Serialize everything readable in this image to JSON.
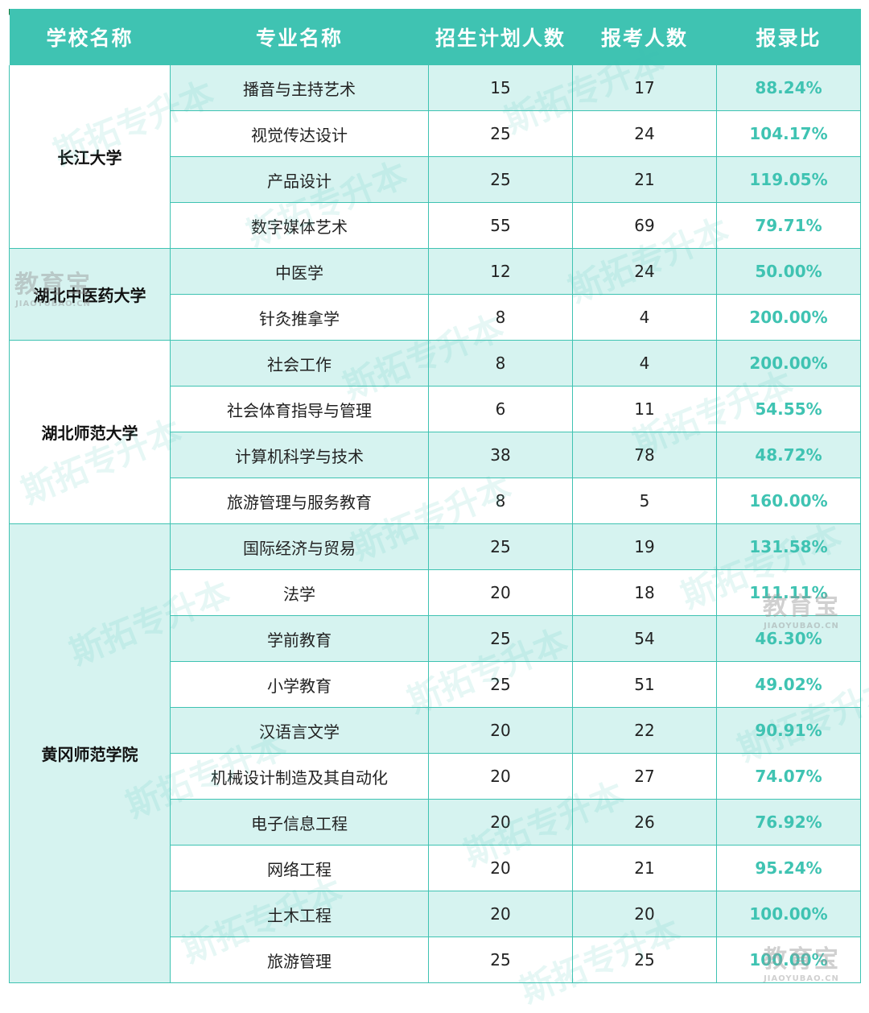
{
  "headers": [
    "学校名称",
    "专业名称",
    "招生计划人数",
    "报考人数",
    "报录比"
  ],
  "schools": [
    {
      "name": "长江大学",
      "rows": [
        {
          "major": "播音与主持艺术",
          "plan": "15",
          "applicants": "17",
          "ratio": "88.24%"
        },
        {
          "major": "视觉传达设计",
          "plan": "25",
          "applicants": "24",
          "ratio": "104.17%"
        },
        {
          "major": "产品设计",
          "plan": "25",
          "applicants": "21",
          "ratio": "119.05%"
        },
        {
          "major": "数字媒体艺术",
          "plan": "55",
          "applicants": "69",
          "ratio": "79.71%"
        }
      ]
    },
    {
      "name": "湖北中医药大学",
      "rows": [
        {
          "major": "中医学",
          "plan": "12",
          "applicants": "24",
          "ratio": "50.00%"
        },
        {
          "major": "针灸推拿学",
          "plan": "8",
          "applicants": "4",
          "ratio": "200.00%"
        }
      ]
    },
    {
      "name": "湖北师范大学",
      "rows": [
        {
          "major": "社会工作",
          "plan": "8",
          "applicants": "4",
          "ratio": "200.00%"
        },
        {
          "major": "社会体育指导与管理",
          "plan": "6",
          "applicants": "11",
          "ratio": "54.55%"
        },
        {
          "major": "计算机科学与技术",
          "plan": "38",
          "applicants": "78",
          "ratio": "48.72%"
        },
        {
          "major": "旅游管理与服务教育",
          "plan": "8",
          "applicants": "5",
          "ratio": "160.00%"
        }
      ]
    },
    {
      "name": "黄冈师范学院",
      "rows": [
        {
          "major": "国际经济与贸易",
          "plan": "25",
          "applicants": "19",
          "ratio": "131.58%"
        },
        {
          "major": "法学",
          "plan": "20",
          "applicants": "18",
          "ratio": "111.11%"
        },
        {
          "major": "学前教育",
          "plan": "25",
          "applicants": "54",
          "ratio": "46.30%"
        },
        {
          "major": "小学教育",
          "plan": "25",
          "applicants": "51",
          "ratio": "49.02%"
        },
        {
          "major": "汉语言文学",
          "plan": "20",
          "applicants": "22",
          "ratio": "90.91%"
        },
        {
          "major": "机械设计制造及其自动化",
          "plan": "20",
          "applicants": "27",
          "ratio": "74.07%"
        },
        {
          "major": "电子信息工程",
          "plan": "20",
          "applicants": "26",
          "ratio": "76.92%"
        },
        {
          "major": "网络工程",
          "plan": "20",
          "applicants": "21",
          "ratio": "95.24%"
        },
        {
          "major": "土木工程",
          "plan": "20",
          "applicants": "20",
          "ratio": "100.00%"
        },
        {
          "major": "旅游管理",
          "plan": "25",
          "applicants": "25",
          "ratio": "100.00%"
        }
      ]
    }
  ],
  "watermarks": {
    "brand": "斯拓专升本",
    "logo_text": "教育宝",
    "logo_url_text": "JIAOYUBAO.CN"
  },
  "colors": {
    "header_bg": "#3fc3b2",
    "row_tint": "#d6f3f0",
    "ratio_text": "#3fc3b2"
  }
}
